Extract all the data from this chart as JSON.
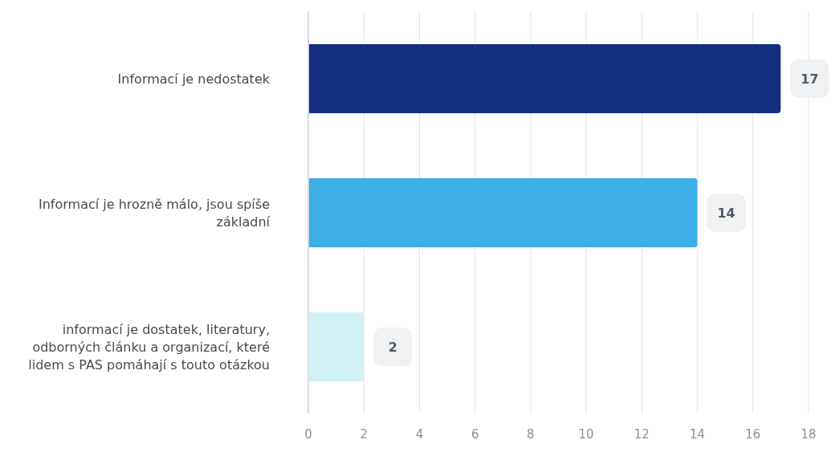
{
  "chart_data": {
    "type": "bar",
    "orientation": "horizontal",
    "categories": [
      "Informací je nedostatek",
      "Informací je hrozně málo, jsou spíše základní",
      "informací je dostatek, literatury, odborných článku a organizací, které lidem s PAS pomáhají s touto otázkou"
    ],
    "values": [
      17,
      14,
      2
    ],
    "colors": [
      "#132f80",
      "#3daee6",
      "#d2f1f7"
    ],
    "xlim": [
      0,
      18
    ],
    "xticks": [
      0,
      2,
      4,
      6,
      8,
      10,
      12,
      14,
      16,
      18
    ],
    "grid": "x",
    "data_labels": true
  }
}
